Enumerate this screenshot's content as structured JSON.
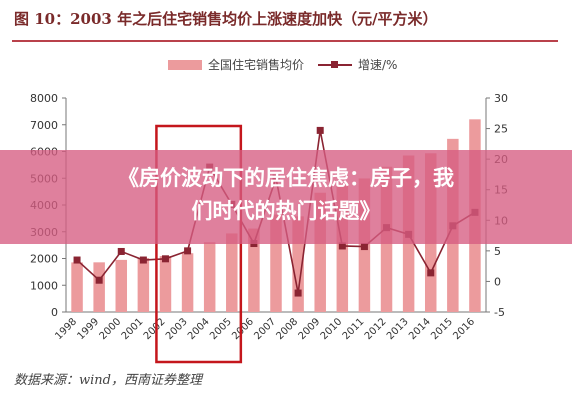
{
  "title": "图 10：2003 年之后住宅销售均价上涨速度加快（元/平方米）",
  "source": "数据来源：wind，西南证券整理",
  "banner": {
    "line1": "《房价波动下的居住焦虑：房子，我",
    "line2": "们时代的热门话题》"
  },
  "colors": {
    "bar": "#ec9b9d",
    "line": "#8a2432",
    "highlight_box": "#c4161c",
    "title_rule": "#b9414b",
    "banner": "#d65c82"
  },
  "chart_data": {
    "type": "bar",
    "categories": [
      "1998",
      "1999",
      "2000",
      "2001",
      "2002",
      "2003",
      "2004",
      "2005",
      "2006",
      "2007",
      "2008",
      "2009",
      "2010",
      "2011",
      "2012",
      "2013",
      "2014",
      "2015",
      "2016"
    ],
    "series": [
      {
        "name": "全国住宅销售均价",
        "type": "bar",
        "axis": "left",
        "values": [
          1854,
          1857,
          1948,
          2017,
          2092,
          2197,
          2608,
          2937,
          3119,
          3645,
          3576,
          4459,
          4725,
          4993,
          5430,
          5850,
          5933,
          6473,
          7203
        ]
      },
      {
        "name": "增速/%",
        "type": "line",
        "axis": "right",
        "values": [
          3.5,
          0.2,
          4.9,
          3.5,
          3.7,
          5.0,
          18.7,
          12.6,
          6.2,
          16.9,
          -1.9,
          24.7,
          5.8,
          5.7,
          8.8,
          7.7,
          1.4,
          9.1,
          11.3
        ]
      }
    ],
    "y_left": {
      "ylim": [
        0,
        8000
      ],
      "ticks": [
        0,
        1000,
        2000,
        3000,
        4000,
        5000,
        6000,
        7000,
        8000
      ]
    },
    "y_right": {
      "ylim": [
        -5,
        30
      ],
      "ticks": [
        -5,
        0,
        5,
        10,
        15,
        20,
        25,
        30
      ]
    },
    "highlight_range": [
      "2002",
      "2005"
    ],
    "legend_position": "top-center",
    "grid": false
  }
}
